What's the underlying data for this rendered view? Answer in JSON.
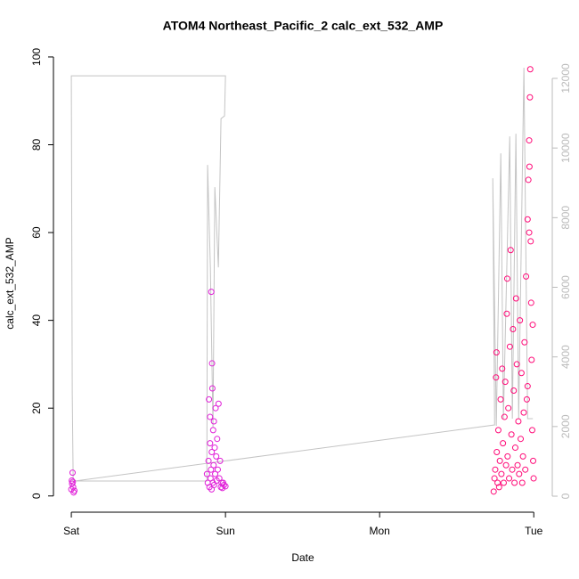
{
  "chart_data": {
    "type": "scatter",
    "title": "ATOM4 Northeast_Pacific_2 calc_ext_532_AMP",
    "xlabel": "Date",
    "ylabel": "calc_ext_532_AMP",
    "xlim": [
      -0.116,
      3.12
    ],
    "xticks": [
      {
        "value": 0,
        "label": "Sat"
      },
      {
        "value": 1,
        "label": "Sun"
      },
      {
        "value": 2,
        "label": "Mon"
      },
      {
        "value": 3,
        "label": "Tue"
      }
    ],
    "ylim": [
      -3.7,
      100.8
    ],
    "yticks": [
      0,
      20,
      40,
      60,
      80,
      100
    ],
    "y2lim": [
      -460,
      12716
    ],
    "y2ticks": [
      0,
      2000,
      4000,
      6000,
      8000,
      10000,
      12000
    ],
    "series": [
      {
        "type": "line",
        "axis": "y2",
        "color": "#c4c4c4",
        "x": [
          0.012,
          0.006,
          0,
          1.0,
          0.994,
          0.971,
          0.954,
          0.931,
          0.919,
          0.902,
          0.884,
          0.879,
          0.023,
          2.746,
          2.734,
          2.757,
          2.786,
          2.803,
          2.844,
          2.861,
          2.884,
          2.902,
          2.936,
          2.96,
          2.994
        ],
        "values": [
          435,
          2992,
          12072,
          12072,
          10921,
          10844,
          6573,
          8875,
          1969,
          6573,
          9514,
          435,
          435,
          2046,
          9130,
          2020,
          9847,
          2225,
          10332,
          2225,
          10409,
          2225,
          12302,
          2225,
          2225
        ]
      },
      {
        "color": "#e020d8",
        "x": [
          0.0,
          0.005,
          0.01,
          0.015,
          0.02,
          0.008,
          0.012,
          0.003,
          0.88,
          0.885,
          0.89,
          0.893,
          0.896,
          0.9,
          0.903,
          0.906,
          0.908,
          0.911,
          0.913,
          0.915,
          0.918,
          0.92,
          0.923,
          0.926,
          0.93,
          0.933,
          0.936,
          0.94,
          0.943,
          0.946,
          0.95,
          0.955,
          0.96,
          0.965,
          0.97,
          0.975,
          0.98,
          0.99,
          1.0,
          0.985,
          0.91,
          0.9,
          0.925
        ],
        "values": [
          1.5,
          2.8,
          3.2,
          0.8,
          1.2,
          5.3,
          2.0,
          3.5,
          5,
          3,
          8,
          22,
          2,
          12,
          4,
          6,
          46.5,
          10,
          30.2,
          24.5,
          3,
          15,
          7,
          2.5,
          11,
          5,
          20,
          9,
          3.5,
          13,
          6,
          21,
          4,
          8,
          2,
          3,
          1.8,
          2.5,
          2.2,
          3,
          1.5,
          18,
          17
        ]
      },
      {
        "color": "#ff0a78",
        "x": [
          2.74,
          2.745,
          2.75,
          2.755,
          2.758,
          2.76,
          2.765,
          2.77,
          2.775,
          2.78,
          2.785,
          2.79,
          2.795,
          2.8,
          2.805,
          2.81,
          2.815,
          2.82,
          2.825,
          2.828,
          2.83,
          2.835,
          2.84,
          2.845,
          2.85,
          2.855,
          2.86,
          2.865,
          2.87,
          2.875,
          2.88,
          2.885,
          2.89,
          2.895,
          2.9,
          2.905,
          2.91,
          2.915,
          2.92,
          2.925,
          2.93,
          2.935,
          2.94,
          2.945,
          2.95,
          2.955,
          2.96,
          2.965,
          2.97,
          2.972,
          2.975,
          2.977,
          2.98,
          2.983,
          2.986,
          2.99,
          2.993,
          2.996,
          2.999,
          2.97,
          2.96
        ],
        "values": [
          1,
          4,
          6,
          27,
          32.7,
          10,
          3,
          15,
          2,
          8,
          22,
          5,
          29,
          12,
          3,
          18,
          26,
          7,
          41.5,
          49.5,
          9,
          20,
          4,
          34,
          56,
          14,
          6,
          38,
          24,
          3,
          11,
          45,
          30,
          7,
          17,
          5,
          40,
          13,
          28,
          3,
          9,
          19,
          35,
          6,
          50,
          22,
          63,
          72,
          81,
          75,
          90.8,
          97.2,
          58,
          44,
          31,
          15,
          39,
          8,
          4,
          60,
          25
        ]
      }
    ]
  }
}
